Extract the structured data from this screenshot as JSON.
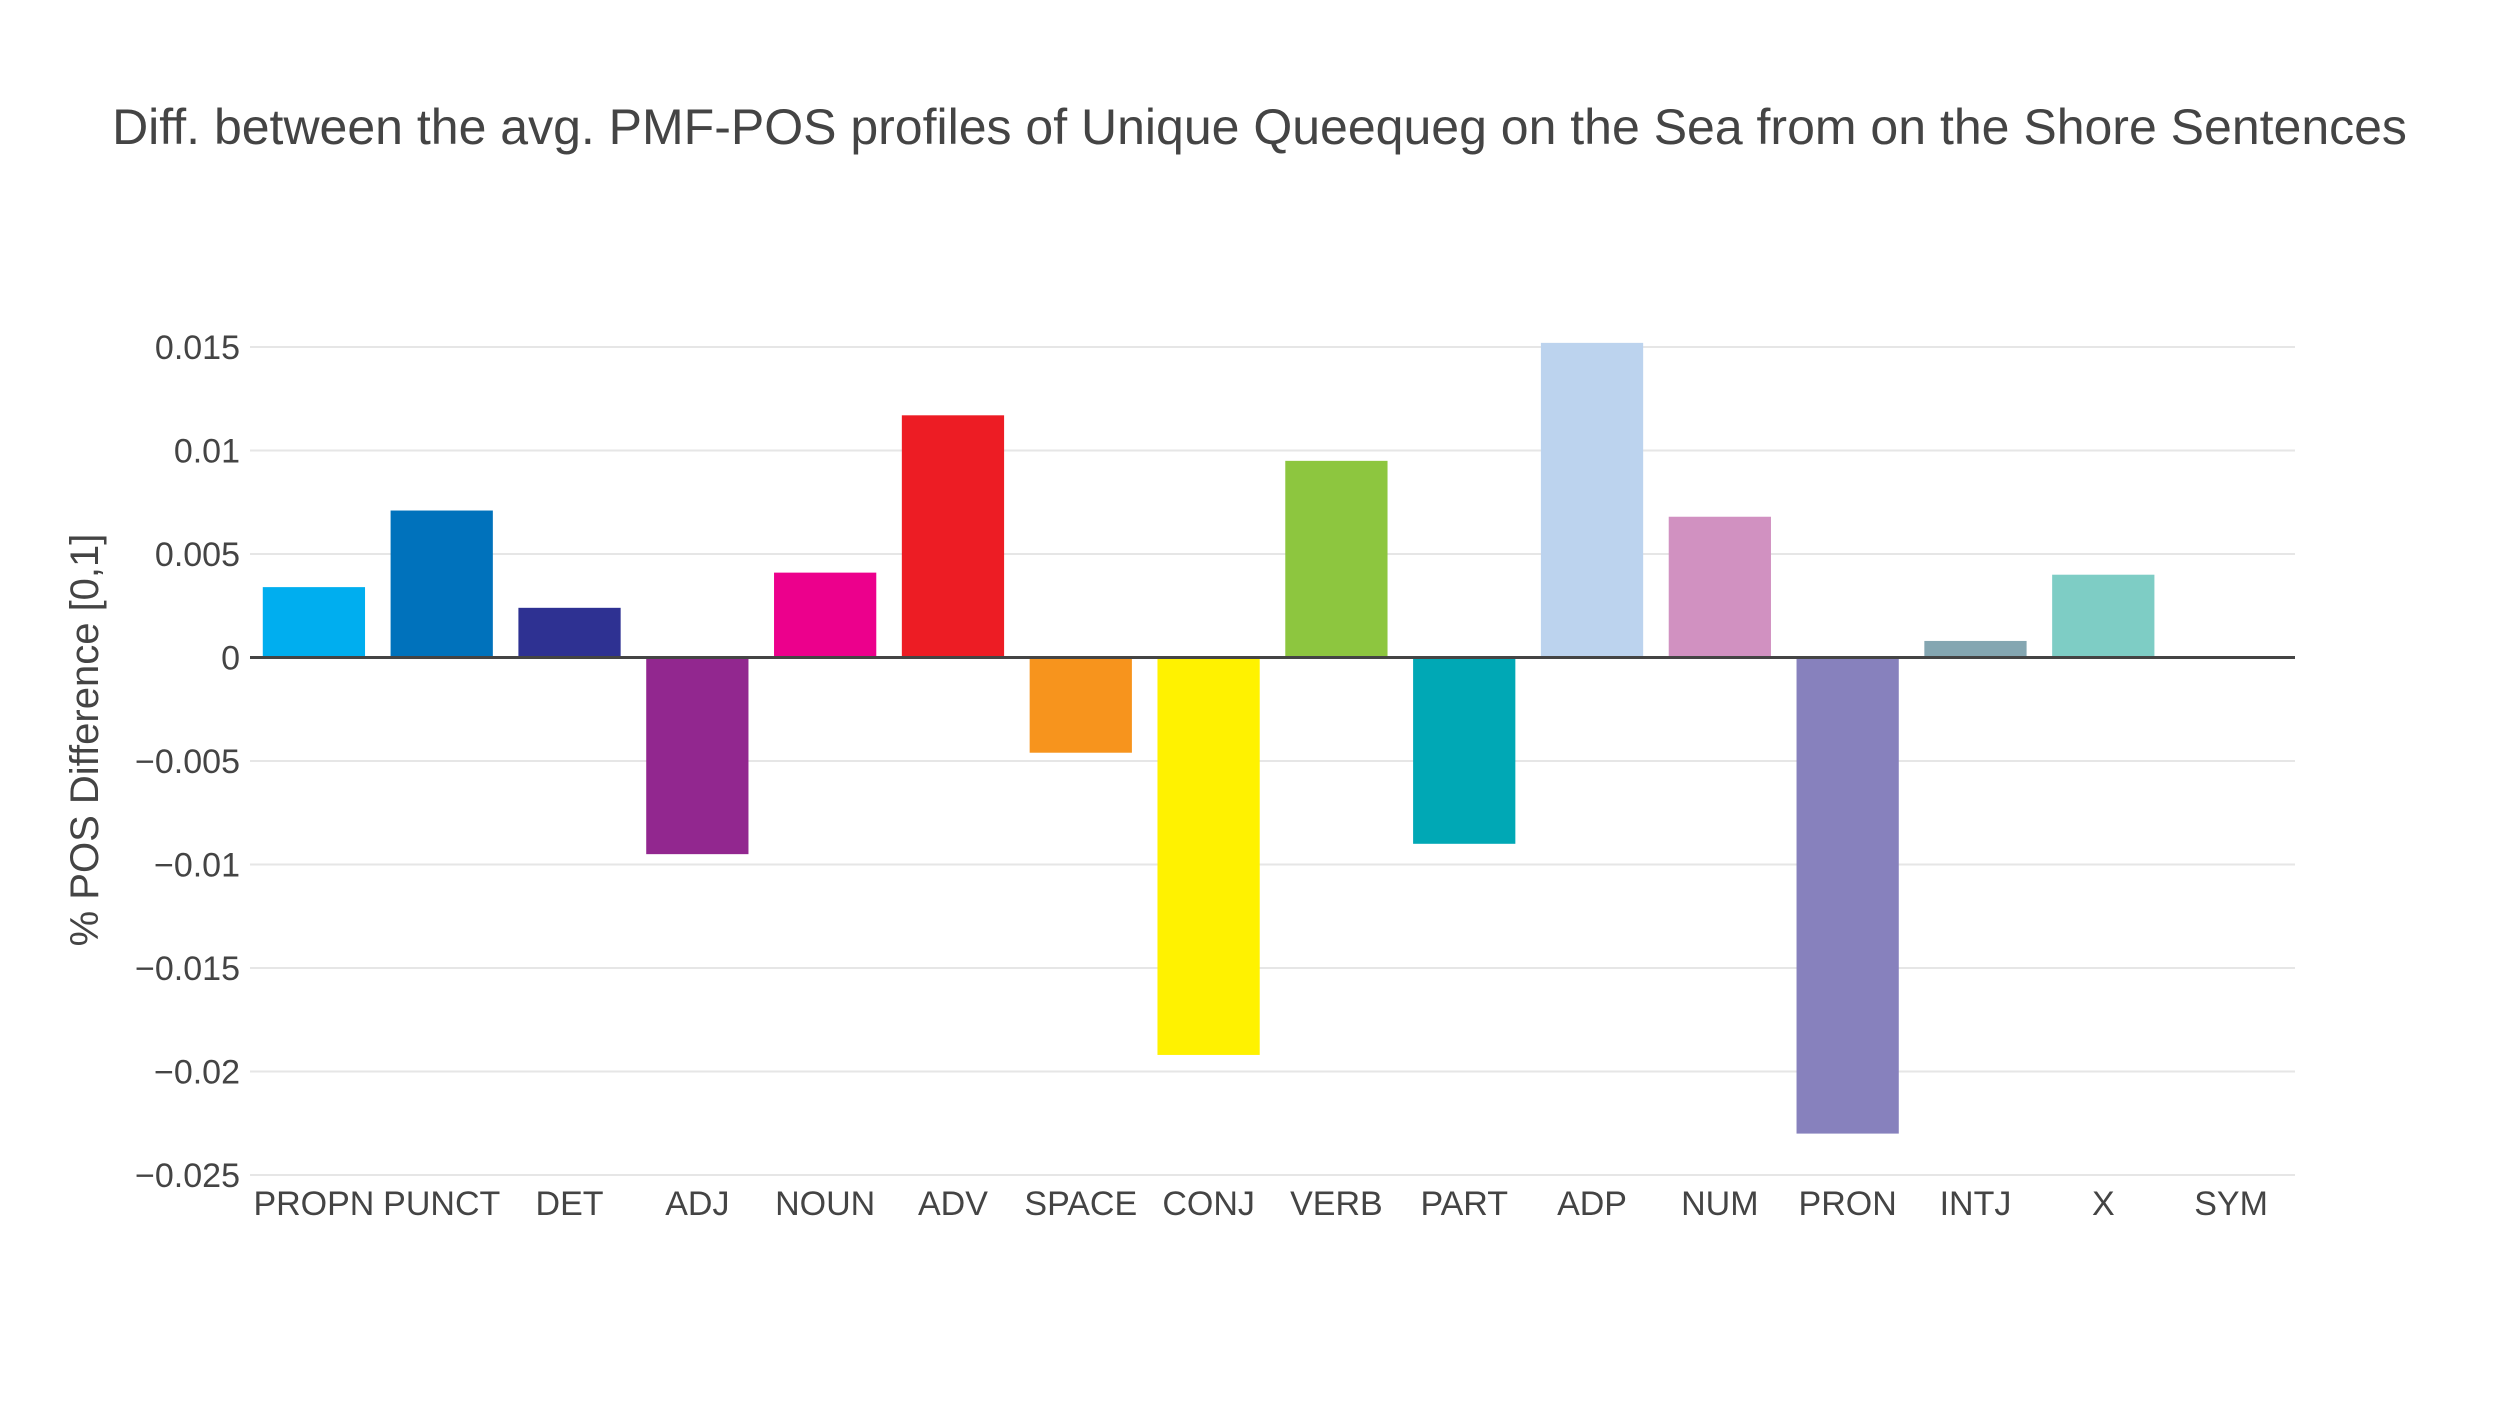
{
  "chart_data": {
    "type": "bar",
    "title": "Diff. between the avg. PMF-POS profiles of Unique Queequeg on the Sea from on the Shore Sentences",
    "xlabel": "",
    "ylabel": "% POS Difference [0,1]",
    "ylim": [
      -0.025,
      0.015
    ],
    "yticks": [
      0.015,
      0.01,
      0.005,
      0,
      -0.005,
      -0.01,
      -0.015,
      -0.02,
      -0.025
    ],
    "ytick_labels": [
      "0.015",
      "0.01",
      "0.005",
      "0",
      "−0.005",
      "−0.01",
      "−0.015",
      "−0.02",
      "−0.025"
    ],
    "grid": true,
    "categories": [
      "PROPN",
      "PUNCT",
      "DET",
      "ADJ",
      "NOUN",
      "ADV",
      "SPACE",
      "CONJ",
      "VERB",
      "PART",
      "ADP",
      "NUM",
      "PRON",
      "INTJ",
      "X",
      "SYM"
    ],
    "values": [
      0.0034,
      0.0071,
      0.0024,
      -0.0095,
      0.0041,
      0.0117,
      -0.0046,
      -0.0192,
      0.0095,
      -0.009,
      0.0152,
      0.0068,
      -0.023,
      0.0008,
      0.004,
      0.0
    ],
    "colors": [
      "#00aeef",
      "#0072bc",
      "#2e3192",
      "#92278f",
      "#ec008c",
      "#ed1c24",
      "#f7941d",
      "#fff200",
      "#8dc63f",
      "#00a8b5",
      "#bcd3ee",
      "#d191c1",
      "#8781bd",
      "#84a6b1",
      "#7ecdc5",
      "#231f20"
    ]
  }
}
